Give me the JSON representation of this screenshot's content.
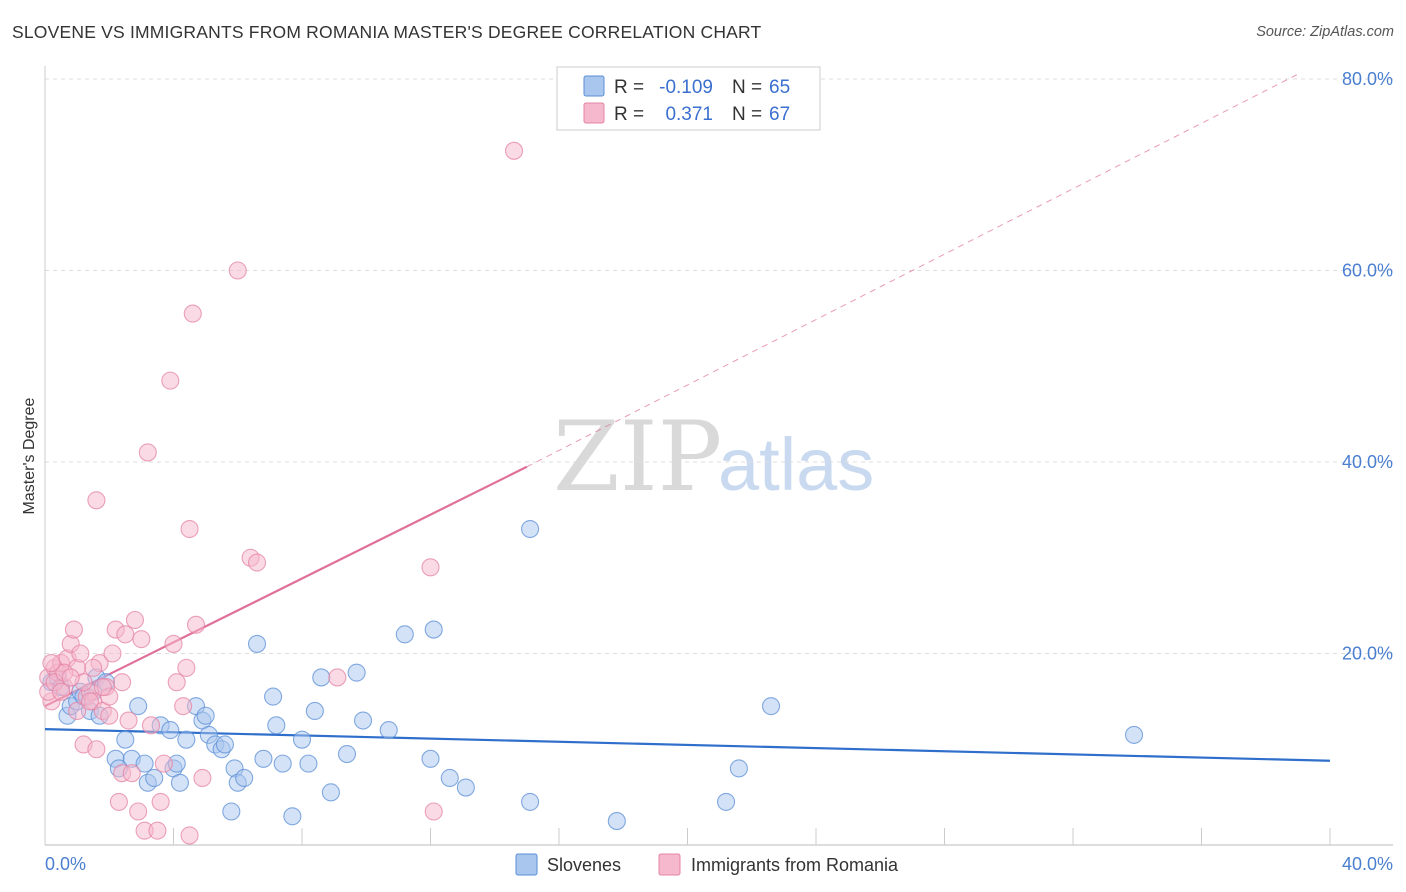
{
  "title": "SLOVENE VS IMMIGRANTS FROM ROMANIA MASTER'S DEGREE CORRELATION CHART",
  "source": "Source: ZipAtlas.com",
  "watermark": {
    "zip": "ZIP",
    "atlas": "atlas"
  },
  "colors": {
    "slovenes_fill": "#a9c6ef",
    "slovenes_stroke": "#5b8fd6",
    "slovenes_line": "#2f6fcb",
    "romania_fill": "#f6b8cc",
    "romania_stroke": "#e483a4",
    "romania_line": "#e0709a",
    "tick_label": "#4a7fd0",
    "grid": "#dddddd"
  },
  "legend": {
    "rows": [
      {
        "r_label": "R =",
        "r_value": "-0.109",
        "n_label": "N =",
        "n_value": "65"
      },
      {
        "r_label": "R =",
        "r_value": "0.371",
        "n_label": "N =",
        "n_value": "67"
      }
    ]
  },
  "chart_data": {
    "type": "scatter",
    "title": "SLOVENE VS IMMIGRANTS FROM ROMANIA MASTER'S DEGREE CORRELATION CHART",
    "xlabel": "",
    "ylabel": "Master's Degree",
    "xlim": [
      0,
      40
    ],
    "ylim": [
      0,
      80
    ],
    "x_tick_labels": [
      {
        "value": 0,
        "label": "0.0%"
      },
      {
        "value": 40,
        "label": "40.0%"
      }
    ],
    "y_tick_labels": [
      {
        "value": 20,
        "label": "20.0%"
      },
      {
        "value": 40,
        "label": "40.0%"
      },
      {
        "value": 60,
        "label": "60.0%"
      },
      {
        "value": 80,
        "label": "80.0%"
      }
    ],
    "series": [
      {
        "name": "Slovenes",
        "r": -0.109,
        "n": 65,
        "trend": {
          "x": [
            0,
            40
          ],
          "y": [
            12.1,
            8.8
          ]
        },
        "points": [
          [
            0.2,
            17.0
          ],
          [
            0.4,
            17.5
          ],
          [
            0.5,
            16.5
          ],
          [
            0.7,
            13.5
          ],
          [
            0.8,
            14.5
          ],
          [
            1.0,
            15.0
          ],
          [
            1.1,
            16.0
          ],
          [
            1.2,
            15.5
          ],
          [
            1.4,
            14.0
          ],
          [
            1.5,
            16.0
          ],
          [
            1.6,
            17.5
          ],
          [
            1.7,
            13.5
          ],
          [
            1.9,
            17.0
          ],
          [
            2.2,
            9.0
          ],
          [
            2.3,
            8.0
          ],
          [
            2.5,
            11.0
          ],
          [
            2.7,
            9.0
          ],
          [
            2.9,
            14.5
          ],
          [
            3.1,
            8.5
          ],
          [
            3.2,
            6.5
          ],
          [
            3.4,
            7.0
          ],
          [
            3.6,
            12.5
          ],
          [
            3.9,
            12.0
          ],
          [
            4.0,
            8.0
          ],
          [
            4.1,
            8.5
          ],
          [
            4.2,
            6.5
          ],
          [
            4.4,
            11.0
          ],
          [
            4.7,
            14.5
          ],
          [
            4.9,
            13.0
          ],
          [
            5.0,
            13.5
          ],
          [
            5.1,
            11.5
          ],
          [
            5.3,
            10.5
          ],
          [
            5.5,
            10.0
          ],
          [
            5.6,
            10.5
          ],
          [
            5.8,
            3.5
          ],
          [
            5.9,
            8.0
          ],
          [
            6.0,
            6.5
          ],
          [
            6.2,
            7.0
          ],
          [
            6.6,
            21.0
          ],
          [
            6.8,
            9.0
          ],
          [
            7.1,
            15.5
          ],
          [
            7.2,
            12.5
          ],
          [
            7.4,
            8.5
          ],
          [
            7.7,
            3.0
          ],
          [
            8.0,
            11.0
          ],
          [
            8.2,
            8.5
          ],
          [
            8.4,
            14.0
          ],
          [
            8.6,
            17.5
          ],
          [
            8.9,
            5.5
          ],
          [
            9.4,
            9.5
          ],
          [
            9.7,
            18.0
          ],
          [
            9.9,
            13.0
          ],
          [
            10.7,
            12.0
          ],
          [
            11.2,
            22.0
          ],
          [
            12.0,
            9.0
          ],
          [
            12.1,
            22.5
          ],
          [
            12.6,
            7.0
          ],
          [
            13.1,
            6.0
          ],
          [
            15.1,
            33.0
          ],
          [
            15.1,
            4.5
          ],
          [
            17.8,
            2.5
          ],
          [
            21.2,
            4.5
          ],
          [
            21.6,
            8.0
          ],
          [
            22.6,
            14.5
          ],
          [
            33.9,
            11.5
          ]
        ]
      },
      {
        "name": "Immigrants from Romania",
        "r": 0.371,
        "n": 67,
        "trend": {
          "x": [
            0,
            15
          ],
          "y": [
            14.5,
            39.5
          ]
        },
        "trend_extension": {
          "x": [
            15,
            39
          ],
          "y": [
            39.5,
            80.5
          ]
        },
        "points": [
          [
            0.1,
            17.5
          ],
          [
            0.2,
            15.0
          ],
          [
            0.3,
            18.5
          ],
          [
            0.4,
            18.0
          ],
          [
            0.5,
            19.0
          ],
          [
            0.6,
            16.5
          ],
          [
            0.7,
            19.5
          ],
          [
            0.8,
            21.0
          ],
          [
            0.9,
            22.5
          ],
          [
            1.0,
            18.5
          ],
          [
            1.0,
            14.0
          ],
          [
            1.1,
            20.0
          ],
          [
            1.2,
            10.5
          ],
          [
            1.3,
            15.5
          ],
          [
            1.4,
            16.0
          ],
          [
            1.5,
            15.0
          ],
          [
            1.6,
            10.0
          ],
          [
            1.6,
            36.0
          ],
          [
            1.7,
            19.0
          ],
          [
            1.8,
            14.0
          ],
          [
            1.9,
            16.5
          ],
          [
            2.0,
            15.5
          ],
          [
            2.1,
            20.0
          ],
          [
            2.2,
            22.5
          ],
          [
            2.3,
            4.5
          ],
          [
            2.4,
            7.5
          ],
          [
            2.5,
            22.0
          ],
          [
            2.6,
            13.0
          ],
          [
            2.7,
            7.5
          ],
          [
            2.8,
            23.5
          ],
          [
            2.9,
            3.5
          ],
          [
            3.0,
            21.5
          ],
          [
            3.1,
            1.5
          ],
          [
            3.2,
            41.0
          ],
          [
            3.3,
            12.5
          ],
          [
            3.5,
            1.5
          ],
          [
            3.6,
            4.5
          ],
          [
            3.7,
            8.5
          ],
          [
            3.9,
            48.5
          ],
          [
            4.0,
            21.0
          ],
          [
            4.1,
            17.0
          ],
          [
            4.3,
            14.5
          ],
          [
            4.4,
            18.5
          ],
          [
            4.5,
            1.0
          ],
          [
            4.5,
            33.0
          ],
          [
            4.6,
            55.5
          ],
          [
            4.7,
            23.0
          ],
          [
            4.9,
            7.0
          ],
          [
            6.0,
            60.0
          ],
          [
            6.4,
            30.0
          ],
          [
            6.6,
            29.5
          ],
          [
            9.1,
            17.5
          ],
          [
            12.0,
            29.0
          ],
          [
            12.1,
            3.5
          ],
          [
            14.6,
            72.5
          ],
          [
            0.1,
            16.0
          ],
          [
            0.3,
            17.0
          ],
          [
            0.5,
            16.0
          ],
          [
            1.2,
            17.0
          ],
          [
            1.4,
            15.0
          ],
          [
            1.8,
            16.5
          ],
          [
            2.0,
            13.5
          ],
          [
            2.4,
            17.0
          ],
          [
            0.6,
            18.0
          ],
          [
            0.2,
            19.0
          ],
          [
            0.8,
            17.5
          ],
          [
            1.5,
            18.5
          ]
        ]
      }
    ]
  }
}
